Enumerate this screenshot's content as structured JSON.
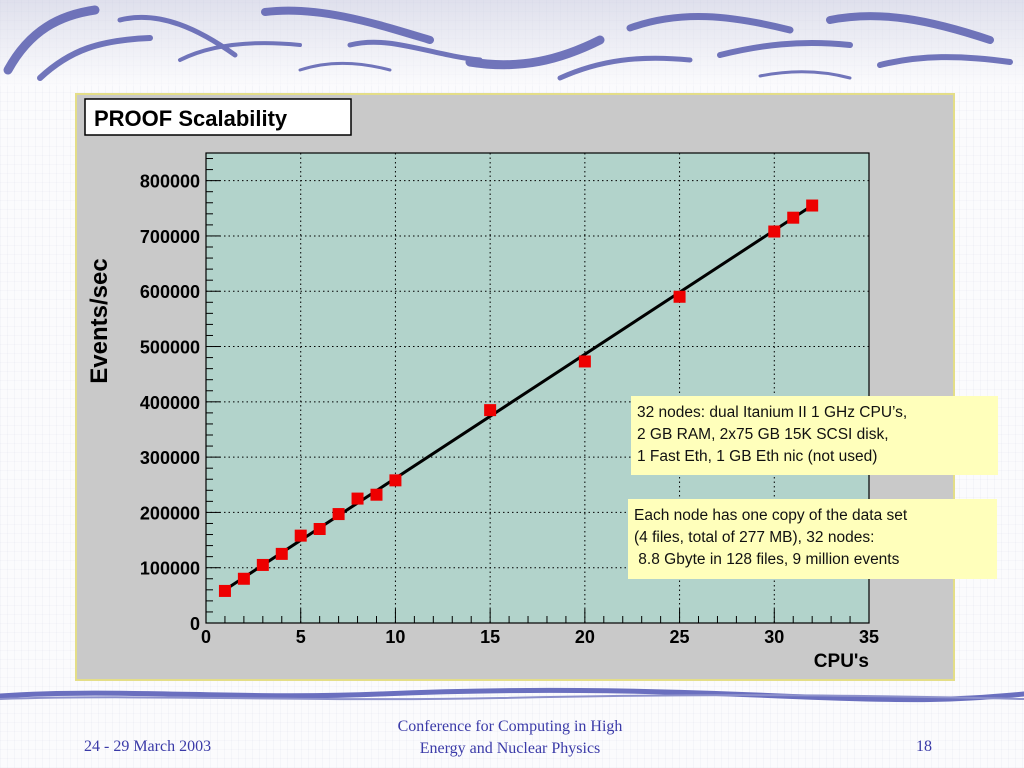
{
  "chart_data": {
    "type": "scatter",
    "title": "PROOF Scalability",
    "xlabel": "CPU's",
    "ylabel": "Events/sec",
    "xlim": [
      0,
      35
    ],
    "ylim": [
      0,
      850000
    ],
    "x_ticks": [
      0,
      5,
      10,
      15,
      20,
      25,
      30,
      35
    ],
    "y_ticks": [
      0,
      100000,
      200000,
      300000,
      400000,
      500000,
      600000,
      700000,
      800000
    ],
    "grid": true,
    "series": [
      {
        "style": "markers",
        "marker_color": "#ee0000",
        "x": [
          1,
          2,
          3,
          4,
          5,
          6,
          7,
          8,
          9,
          10,
          15,
          20,
          25,
          30,
          31,
          32
        ],
        "y": [
          58000,
          80000,
          105000,
          125000,
          158000,
          170000,
          197000,
          225000,
          232000,
          258000,
          385000,
          473000,
          590000,
          708000,
          733000,
          755000
        ]
      },
      {
        "style": "line",
        "line_color": "#000000",
        "x": [
          1,
          32
        ],
        "y": [
          60000,
          755000
        ]
      }
    ],
    "background": "#b2d3cb"
  },
  "annotations": {
    "specs": "32 nodes: dual Itanium II 1 GHz CPU’s,\n2 GB RAM, 2x75 GB 15K SCSI disk,\n1 Fast Eth, 1 GB Eth nic (not used)",
    "dataset": "Each node has one copy of the data set\n(4 files, total of 277 MB), 32 nodes:\n 8.8 Gbyte in 128 files, 9 million events"
  },
  "footer": {
    "date": "24 - 29 March 2003",
    "conference_line1": "Conference for Computing in High",
    "conference_line2": "Energy and Nuclear Physics",
    "page": "18"
  },
  "theme": {
    "accent": "#5a5fb0",
    "footer_text": "#3a3aa8",
    "note_bg": "#ffffbb"
  }
}
